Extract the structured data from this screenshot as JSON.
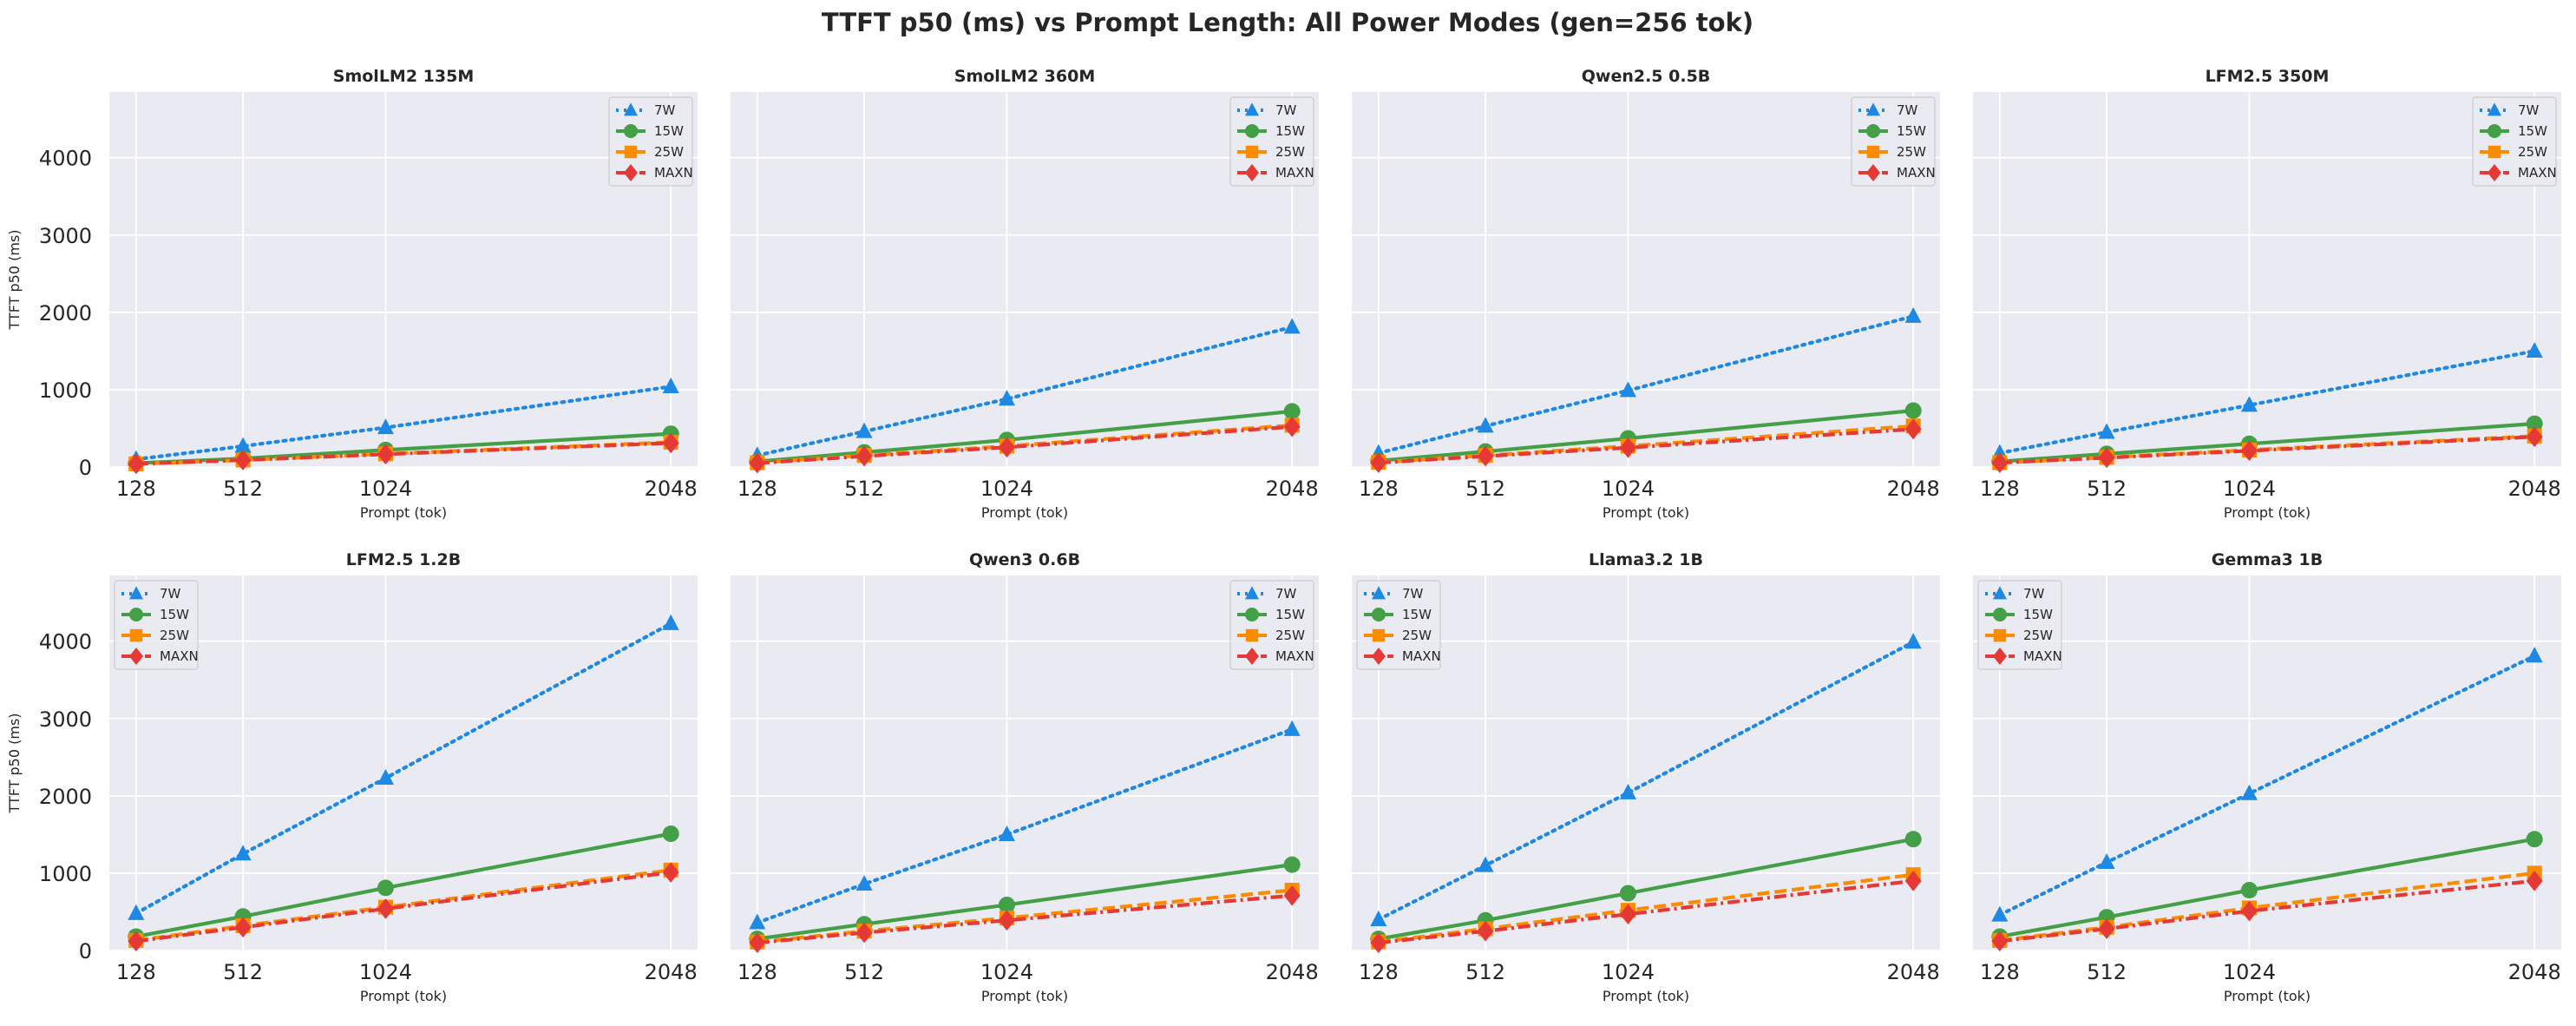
{
  "figure": {
    "title": "TTFT p50 (ms) vs Prompt Length: All Power Modes (gen=256 tok)"
  },
  "series_styles": [
    {
      "name": "7W",
      "color": "#1E88E5",
      "marker": "triangle",
      "dash": "dotted"
    },
    {
      "name": "15W",
      "color": "#43A047",
      "marker": "circle",
      "dash": "solid"
    },
    {
      "name": "25W",
      "color": "#FB8C00",
      "marker": "square",
      "dash": "dashed"
    },
    {
      "name": "MAXN",
      "color": "#E53935",
      "marker": "diamond",
      "dash": "dashdot"
    }
  ],
  "colors": {
    "plot_background": "#EAEAF2",
    "grid": "#FFFFFF"
  },
  "chart_data": [
    {
      "type": "line",
      "title": "SmolLM2 135M",
      "xlabel": "Prompt (tok)",
      "ylabel": "TTFT p50 (ms)",
      "x": [
        128,
        512,
        1024,
        2048
      ],
      "xticks": [
        "128",
        "512",
        "1024",
        "2048"
      ],
      "yticks": [
        "0",
        "1000",
        "2000",
        "3000",
        "4000"
      ],
      "ylim": [
        0,
        4850
      ],
      "grid": true,
      "legend": "top-right",
      "series": [
        {
          "name": "7W",
          "values": [
            100,
            270,
            510,
            1040
          ]
        },
        {
          "name": "15W",
          "values": [
            50,
            110,
            220,
            430
          ]
        },
        {
          "name": "25W",
          "values": [
            40,
            90,
            170,
            320
          ]
        },
        {
          "name": "MAXN",
          "values": [
            40,
            90,
            165,
            310
          ]
        }
      ]
    },
    {
      "type": "line",
      "title": "SmolLM2 360M",
      "xlabel": "Prompt (tok)",
      "ylabel": "",
      "x": [
        128,
        512,
        1024,
        2048
      ],
      "xticks": [
        "128",
        "512",
        "1024",
        "2048"
      ],
      "yticks": [],
      "ylim": [
        0,
        4850
      ],
      "grid": true,
      "legend": "top-right",
      "series": [
        {
          "name": "7W",
          "values": [
            150,
            460,
            880,
            1810
          ]
        },
        {
          "name": "15W",
          "values": [
            70,
            190,
            350,
            720
          ]
        },
        {
          "name": "25W",
          "values": [
            55,
            150,
            270,
            540
          ]
        },
        {
          "name": "MAXN",
          "values": [
            50,
            140,
            255,
            520
          ]
        }
      ]
    },
    {
      "type": "line",
      "title": "Qwen2.5 0.5B",
      "xlabel": "Prompt (tok)",
      "ylabel": "",
      "x": [
        128,
        512,
        1024,
        2048
      ],
      "xticks": [
        "128",
        "512",
        "1024",
        "2048"
      ],
      "yticks": [],
      "ylim": [
        0,
        4850
      ],
      "grid": true,
      "legend": "top-right",
      "series": [
        {
          "name": "7W",
          "values": [
            180,
            530,
            990,
            1950
          ]
        },
        {
          "name": "15W",
          "values": [
            80,
            200,
            370,
            730
          ]
        },
        {
          "name": "25W",
          "values": [
            60,
            150,
            270,
            530
          ]
        },
        {
          "name": "MAXN",
          "values": [
            55,
            140,
            250,
            490
          ]
        }
      ]
    },
    {
      "type": "line",
      "title": "LFM2.5 350M",
      "xlabel": "Prompt (tok)",
      "ylabel": "",
      "x": [
        128,
        512,
        1024,
        2048
      ],
      "xticks": [
        "128",
        "512",
        "1024",
        "2048"
      ],
      "yticks": [],
      "ylim": [
        0,
        4850
      ],
      "grid": true,
      "legend": "top-right",
      "series": [
        {
          "name": "7W",
          "values": [
            180,
            450,
            800,
            1500
          ]
        },
        {
          "name": "15W",
          "values": [
            70,
            170,
            300,
            560
          ]
        },
        {
          "name": "25W",
          "values": [
            55,
            125,
            220,
            400
          ]
        },
        {
          "name": "MAXN",
          "values": [
            55,
            120,
            210,
            390
          ]
        }
      ]
    },
    {
      "type": "line",
      "title": "LFM2.5 1.2B",
      "xlabel": "Prompt (tok)",
      "ylabel": "TTFT p50 (ms)",
      "x": [
        128,
        512,
        1024,
        2048
      ],
      "xticks": [
        "128",
        "512",
        "1024",
        "2048"
      ],
      "yticks": [
        "0",
        "1000",
        "2000",
        "3000",
        "4000"
      ],
      "ylim": [
        0,
        4850
      ],
      "grid": true,
      "legend": "top-left",
      "series": [
        {
          "name": "7W",
          "values": [
            480,
            1250,
            2230,
            4230
          ]
        },
        {
          "name": "15W",
          "values": [
            180,
            440,
            810,
            1510
          ]
        },
        {
          "name": "25W",
          "values": [
            130,
            320,
            560,
            1040
          ]
        },
        {
          "name": "MAXN",
          "values": [
            120,
            300,
            540,
            1010
          ]
        }
      ]
    },
    {
      "type": "line",
      "title": "Qwen3 0.6B",
      "xlabel": "Prompt (tok)",
      "ylabel": "",
      "x": [
        128,
        512,
        1024,
        2048
      ],
      "xticks": [
        "128",
        "512",
        "1024",
        "2048"
      ],
      "yticks": [],
      "ylim": [
        0,
        4850
      ],
      "grid": true,
      "legend": "top-right",
      "series": [
        {
          "name": "7W",
          "values": [
            360,
            860,
            1500,
            2860
          ]
        },
        {
          "name": "15W",
          "values": [
            150,
            340,
            590,
            1110
          ]
        },
        {
          "name": "25W",
          "values": [
            110,
            250,
            420,
            780
          ]
        },
        {
          "name": "MAXN",
          "values": [
            100,
            230,
            390,
            710
          ]
        }
      ]
    },
    {
      "type": "line",
      "title": "Llama3.2 1B",
      "xlabel": "Prompt (tok)",
      "ylabel": "",
      "x": [
        128,
        512,
        1024,
        2048
      ],
      "xticks": [
        "128",
        "512",
        "1024",
        "2048"
      ],
      "yticks": [],
      "ylim": [
        0,
        4850
      ],
      "grid": true,
      "legend": "top-left",
      "series": [
        {
          "name": "7W",
          "values": [
            400,
            1100,
            2040,
            3990
          ]
        },
        {
          "name": "15W",
          "values": [
            150,
            390,
            740,
            1440
          ]
        },
        {
          "name": "25W",
          "values": [
            110,
            280,
            520,
            980
          ]
        },
        {
          "name": "MAXN",
          "values": [
            100,
            250,
            470,
            900
          ]
        }
      ]
    },
    {
      "type": "line",
      "title": "Gemma3 1B",
      "xlabel": "Prompt (tok)",
      "ylabel": "",
      "x": [
        128,
        512,
        1024,
        2048
      ],
      "xticks": [
        "128",
        "512",
        "1024",
        "2048"
      ],
      "yticks": [],
      "ylim": [
        0,
        4850
      ],
      "grid": true,
      "legend": "top-left",
      "series": [
        {
          "name": "7W",
          "values": [
            460,
            1140,
            2030,
            3810
          ]
        },
        {
          "name": "15W",
          "values": [
            180,
            430,
            780,
            1440
          ]
        },
        {
          "name": "25W",
          "values": [
            130,
            300,
            550,
            1000
          ]
        },
        {
          "name": "MAXN",
          "values": [
            120,
            280,
            510,
            900
          ]
        }
      ]
    }
  ]
}
